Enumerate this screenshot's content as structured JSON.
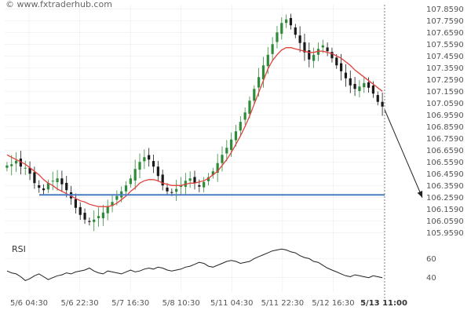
{
  "colors": {
    "up": "#2e8b3a",
    "down": "#1a1a1a",
    "ma": "#e0413e",
    "level": "#4a7cc0",
    "arrow": "#222222",
    "rsi": "#222222",
    "grid": "#ececec",
    "axis_text": "#555555"
  },
  "watermark": "© www.fxtraderhub.com",
  "chart_data": [
    {
      "type": "candlestick",
      "x_tick_labels": [
        "5/6 04:30",
        "5/6 22:30",
        "5/7 16:30",
        "5/8 10:30",
        "5/11 04:30",
        "5/11 22:30",
        "5/12 16:30",
        "5/13 11:00"
      ],
      "y_tick_labels": [
        "107.8590",
        "107.7590",
        "107.6590",
        "107.5590",
        "107.4590",
        "107.3590",
        "107.2590",
        "107.1590",
        "107.0590",
        "106.9590",
        "106.8590",
        "106.7590",
        "106.6590",
        "106.5590",
        "106.4590",
        "106.3590",
        "106.2590",
        "106.1590",
        "106.0590",
        "105.9590"
      ],
      "ylim": [
        105.935,
        107.895
      ],
      "grid": true,
      "support_level": 106.28,
      "projection_target": 106.27,
      "series": [
        {
          "kind": "close",
          "values": [
            106.53,
            106.54,
            106.57,
            106.52,
            106.51,
            106.46,
            106.38,
            106.34,
            106.32,
            106.38,
            106.4,
            106.42,
            106.37,
            106.32,
            106.25,
            106.17,
            106.11,
            106.07,
            106.05,
            106.07,
            106.1,
            106.13,
            106.18,
            106.22,
            106.27,
            106.31,
            106.36,
            106.42,
            106.5,
            106.56,
            106.6,
            106.58,
            106.52,
            106.44,
            106.36,
            106.31,
            106.3,
            106.33,
            106.36,
            106.4,
            106.42,
            106.38,
            106.35,
            106.39,
            106.43,
            106.48,
            106.55,
            106.62,
            106.68,
            106.75,
            106.82,
            106.9,
            106.98,
            107.08,
            107.18,
            107.28,
            107.38,
            107.47,
            107.56,
            107.66,
            107.74,
            107.77,
            107.72,
            107.64,
            107.57,
            107.49,
            107.43,
            107.47,
            107.52,
            107.55,
            107.5,
            107.44,
            107.38,
            107.33,
            107.27,
            107.21,
            107.18,
            107.2,
            107.23,
            107.19,
            107.14,
            107.07,
            107.03
          ]
        },
        {
          "kind": "moving_average",
          "values": [
            106.62,
            106.6,
            106.58,
            106.56,
            106.54,
            106.51,
            106.48,
            106.45,
            106.41,
            106.38,
            106.36,
            106.33,
            106.31,
            106.29,
            106.27,
            106.25,
            106.23,
            106.22,
            106.2,
            106.19,
            106.18,
            106.18,
            106.18,
            106.19,
            106.21,
            106.24,
            106.27,
            106.31,
            106.34,
            106.38,
            106.4,
            106.41,
            106.41,
            106.4,
            106.38,
            106.37,
            106.36,
            106.36,
            106.36,
            106.37,
            106.38,
            106.38,
            106.39,
            106.4,
            106.42,
            106.45,
            106.48,
            106.53,
            106.58,
            106.64,
            106.71,
            106.78,
            106.86,
            106.95,
            107.05,
            107.15,
            107.25,
            107.35,
            107.42,
            107.47,
            107.51,
            107.53,
            107.53,
            107.52,
            107.51,
            107.5,
            107.49,
            107.49,
            107.5,
            107.5,
            107.49,
            107.48,
            107.46,
            107.44,
            107.41,
            107.38,
            107.34,
            107.31,
            107.28,
            107.25,
            107.22,
            107.19,
            107.16
          ]
        }
      ]
    },
    {
      "type": "line",
      "title": "RSI",
      "y_tick_labels": [
        "60",
        "40"
      ],
      "ylim": [
        25,
        80
      ],
      "values": [
        47,
        45,
        44,
        41,
        37,
        39,
        42,
        44,
        41,
        38,
        40,
        42,
        43,
        45,
        44,
        46,
        47,
        48,
        50,
        47,
        45,
        44,
        47,
        46,
        45,
        44,
        46,
        48,
        46,
        47,
        49,
        50,
        49,
        51,
        50,
        48,
        47,
        48,
        49,
        51,
        52,
        54,
        56,
        55,
        52,
        51,
        53,
        55,
        57,
        58,
        57,
        55,
        56,
        57,
        60,
        62,
        64,
        66,
        68,
        69,
        70,
        69,
        67,
        66,
        63,
        61,
        60,
        57,
        56,
        53,
        50,
        48,
        46,
        44,
        42,
        41,
        43,
        42,
        41,
        40,
        42,
        41,
        40
      ]
    }
  ]
}
